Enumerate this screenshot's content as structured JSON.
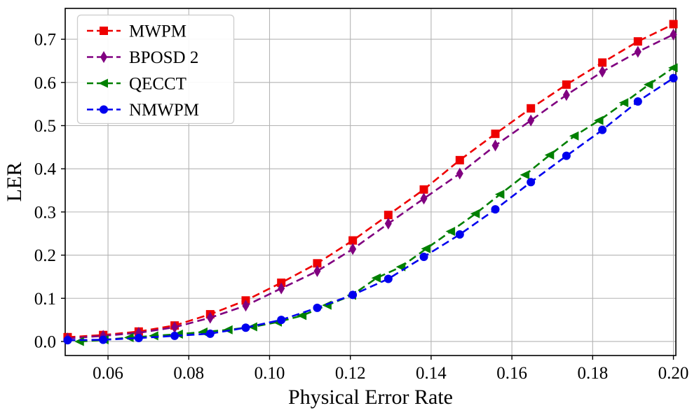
{
  "figure": {
    "background": "#ffffff",
    "grid_color": "#b4b4b4",
    "spine_color": "#000000"
  },
  "chart_data": {
    "type": "line",
    "title": "",
    "xlabel": "Physical Error Rate",
    "ylabel": "LER",
    "xlim": [
      0.0494,
      0.2006
    ],
    "ylim": [
      -0.0325,
      0.7715
    ],
    "grid": true,
    "legend_position": "upper-left",
    "x_ticks": [
      0.06,
      0.08,
      0.1,
      0.12,
      0.14,
      0.16,
      0.18,
      0.2
    ],
    "x_tick_labels": [
      "0.06",
      "0.08",
      "0.10",
      "0.12",
      "0.14",
      "0.16",
      "0.18",
      "0.20"
    ],
    "y_ticks": [
      0.0,
      0.1,
      0.2,
      0.3,
      0.4,
      0.5,
      0.6,
      0.7
    ],
    "y_tick_labels": [
      "0.0",
      "0.1",
      "0.2",
      "0.3",
      "0.4",
      "0.5",
      "0.6",
      "0.7"
    ],
    "series": [
      {
        "name": "MWPM",
        "color": "#ee0000",
        "marker": "square",
        "linestyle": "dashed",
        "x": [
          0.05,
          0.0588,
          0.0676,
          0.0765,
          0.0853,
          0.0941,
          0.1029,
          0.1118,
          0.1206,
          0.1294,
          0.1382,
          0.1471,
          0.1559,
          0.1647,
          0.1735,
          0.1824,
          0.1912,
          0.2
        ],
        "y": [
          0.01,
          0.015,
          0.023,
          0.037,
          0.063,
          0.095,
          0.136,
          0.181,
          0.234,
          0.293,
          0.352,
          0.42,
          0.481,
          0.54,
          0.595,
          0.646,
          0.695,
          0.735
        ]
      },
      {
        "name": "BPOSD 2",
        "color": "#800080",
        "marker": "diamond",
        "linestyle": "dashed",
        "x": [
          0.05,
          0.0588,
          0.0676,
          0.0765,
          0.0853,
          0.0941,
          0.1029,
          0.1118,
          0.1206,
          0.1294,
          0.1382,
          0.1471,
          0.1559,
          0.1647,
          0.1735,
          0.1824,
          0.1912,
          0.2
        ],
        "y": [
          0.007,
          0.013,
          0.02,
          0.033,
          0.055,
          0.083,
          0.123,
          0.163,
          0.214,
          0.273,
          0.331,
          0.389,
          0.454,
          0.512,
          0.571,
          0.625,
          0.671,
          0.711
        ]
      },
      {
        "name": "QECCT",
        "color": "#008000",
        "marker": "triangle-left",
        "linestyle": "dashed",
        "x": [
          0.053,
          0.0591,
          0.0653,
          0.0714,
          0.0775,
          0.0836,
          0.0898,
          0.0959,
          0.102,
          0.1081,
          0.1143,
          0.1204,
          0.1265,
          0.1326,
          0.1388,
          0.1449,
          0.151,
          0.1571,
          0.1633,
          0.1694,
          0.1755,
          0.1816,
          0.1878,
          0.1939,
          0.2
        ],
        "y": [
          0.0,
          0.004,
          0.009,
          0.013,
          0.017,
          0.022,
          0.027,
          0.034,
          0.045,
          0.06,
          0.084,
          0.107,
          0.147,
          0.173,
          0.215,
          0.255,
          0.296,
          0.341,
          0.386,
          0.432,
          0.476,
          0.512,
          0.553,
          0.595,
          0.634
        ]
      },
      {
        "name": "NMWPM",
        "color": "#0000ee",
        "marker": "circle",
        "linestyle": "dashed",
        "x": [
          0.05,
          0.0588,
          0.0676,
          0.0765,
          0.0853,
          0.0941,
          0.1029,
          0.1118,
          0.1206,
          0.1294,
          0.1382,
          0.1471,
          0.1559,
          0.1647,
          0.1735,
          0.1824,
          0.1912,
          0.2
        ],
        "y": [
          0.003,
          0.004,
          0.008,
          0.013,
          0.018,
          0.032,
          0.05,
          0.078,
          0.108,
          0.145,
          0.196,
          0.248,
          0.306,
          0.369,
          0.43,
          0.49,
          0.556,
          0.61
        ]
      }
    ]
  }
}
